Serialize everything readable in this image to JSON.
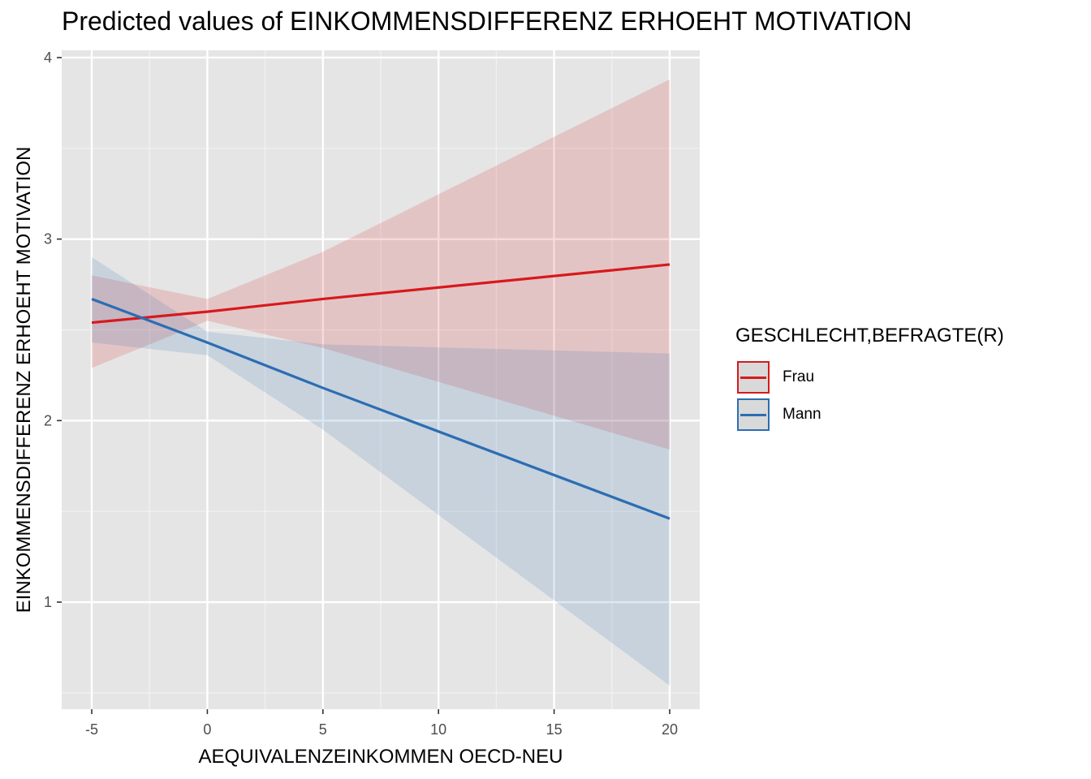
{
  "chart_data": {
    "type": "line",
    "title": "Predicted values of EINKOMMENSDIFFERENZ ERHOEHT MOTIVATION",
    "xlabel": "AEQUIVALENZEINKOMMEN OECD-NEU",
    "ylabel": "EINKOMMENSDIFFERENZ ERHOEHT MOTIVATION",
    "xlim": [
      -6.3,
      21.3
    ],
    "ylim": [
      0.41,
      4.04
    ],
    "x_ticks": [
      -5,
      0,
      5,
      10,
      15,
      20
    ],
    "x_tick_labels": [
      "-5",
      "0",
      "5",
      "10",
      "15",
      "20"
    ],
    "y_ticks": [
      1,
      2,
      3,
      4
    ],
    "y_tick_labels": [
      "1",
      "2",
      "3",
      "4"
    ],
    "grid": true,
    "legend_title": "GESCHLECHT,BEFRAGTE(R)",
    "legend_position": "right",
    "series": [
      {
        "name": "Frau",
        "color": "#d7191c",
        "x": [
          -5,
          0,
          5,
          20
        ],
        "y": [
          2.54,
          2.6,
          2.67,
          2.86
        ],
        "ci_lower": [
          2.29,
          2.55,
          2.4,
          1.84
        ],
        "ci_upper": [
          2.8,
          2.67,
          2.93,
          3.88
        ]
      },
      {
        "name": "Mann",
        "color": "#2c6db2",
        "x": [
          -5,
          0,
          5,
          20
        ],
        "y": [
          2.67,
          2.43,
          2.18,
          1.46
        ],
        "ci_lower": [
          2.43,
          2.36,
          1.95,
          0.54
        ],
        "ci_upper": [
          2.9,
          2.49,
          2.42,
          2.37
        ]
      }
    ]
  }
}
